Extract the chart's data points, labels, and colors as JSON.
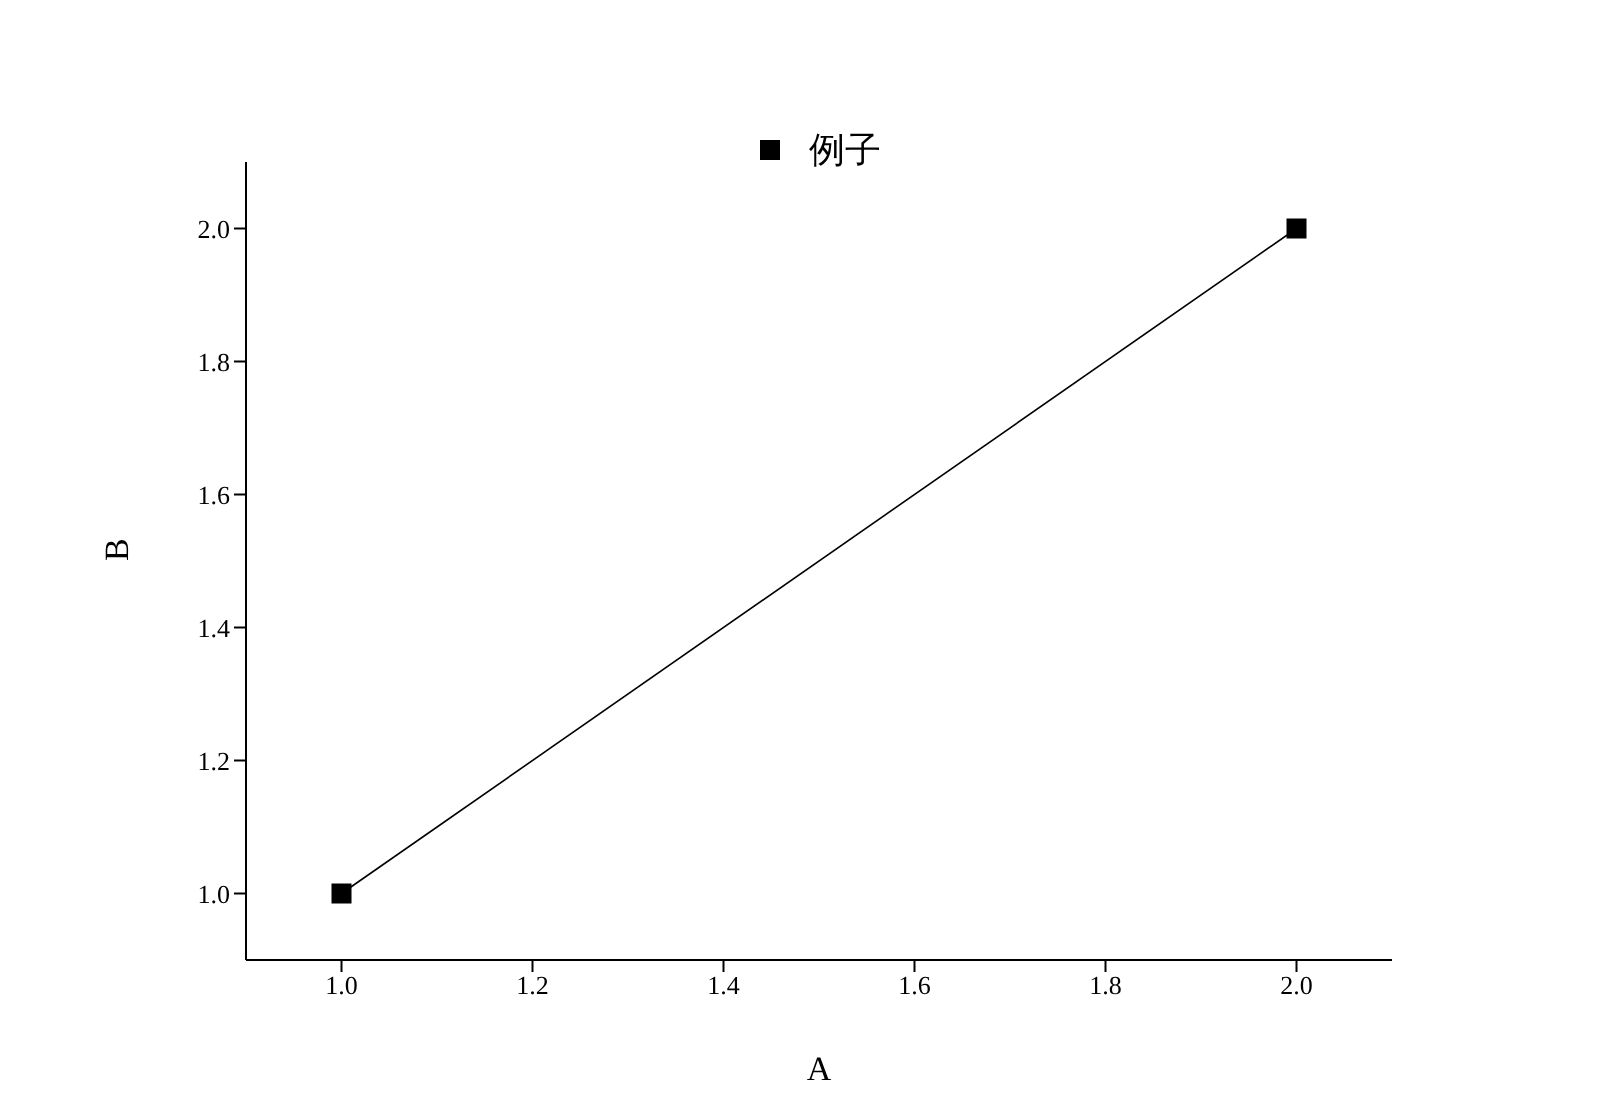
{
  "chart_data": {
    "type": "line",
    "xlabel": "A",
    "ylabel": "B",
    "x": [
      1.0,
      2.0
    ],
    "series": [
      {
        "name": "例子",
        "color": "#000000",
        "values": [
          1.0,
          2.0
        ]
      }
    ],
    "xlim": [
      0.9,
      2.1
    ],
    "xticks": [
      {
        "value": 1.0,
        "label": "1.0"
      },
      {
        "value": 1.2,
        "label": "1.2"
      },
      {
        "value": 1.4,
        "label": "1.4"
      },
      {
        "value": 1.6,
        "label": "1.6"
      },
      {
        "value": 1.8,
        "label": "1.8"
      },
      {
        "value": 2.0,
        "label": "2.0"
      }
    ],
    "ylim": [
      0.9,
      2.1
    ],
    "yticks": [
      {
        "value": 1.0,
        "label": "1.0"
      },
      {
        "value": 1.2,
        "label": "1.2"
      },
      {
        "value": 1.4,
        "label": "1.4"
      },
      {
        "value": 1.6,
        "label": "1.6"
      },
      {
        "value": 1.8,
        "label": "1.8"
      },
      {
        "value": 2.0,
        "label": "2.0"
      }
    ],
    "grid": false,
    "legend": "top",
    "marker": "square",
    "line_style": "solid"
  }
}
